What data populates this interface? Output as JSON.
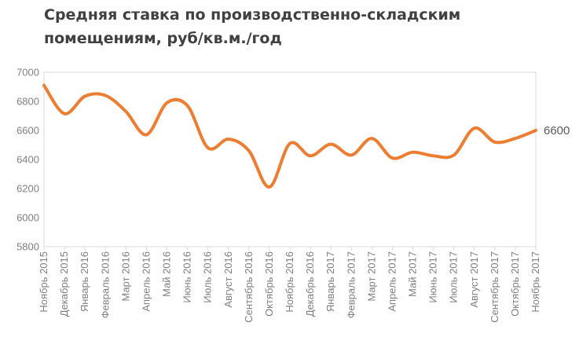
{
  "title_line1": "Средняя ставка по производственно-складским",
  "title_line2": "помещениям,  руб/кв.м./год",
  "chart_data": {
    "type": "line",
    "title": "Средняя ставка по производственно-складским помещениям,  руб/кв.м./год",
    "categories": [
      "Ноябрь 2015",
      "Декабрь 2015",
      "Январь 2016",
      "Февраль 2016",
      "Март 2016",
      "Апрель 2016",
      "Май 2016",
      "Июнь 2016",
      "Июль 2016",
      "Август 2016",
      "Сентябрь 2016",
      "Октябрь 2016",
      "Ноябрь 2016",
      "Декабрь 2016",
      "Январь 2017",
      "Февраль 2017",
      "Март 2017",
      "Апрель 2017",
      "Май 2017",
      "Июнь 2017",
      "Июль 2017",
      "Август 2017",
      "Сентябрь 2017",
      "Октябрь 2017",
      "Ноябрь 2017"
    ],
    "values": [
      6910,
      6715,
      6835,
      6840,
      6730,
      6570,
      6790,
      6770,
      6480,
      6540,
      6460,
      6210,
      6510,
      6425,
      6505,
      6430,
      6545,
      6410,
      6450,
      6425,
      6430,
      6615,
      6520,
      6545,
      6600
    ],
    "ylim": [
      5800,
      7000
    ],
    "yticks": [
      5800,
      6000,
      6200,
      6400,
      6600,
      6800,
      7000
    ],
    "end_label": "6600",
    "grid": false,
    "color": "#ED7D31",
    "axis_color": "#d9d9d9"
  }
}
